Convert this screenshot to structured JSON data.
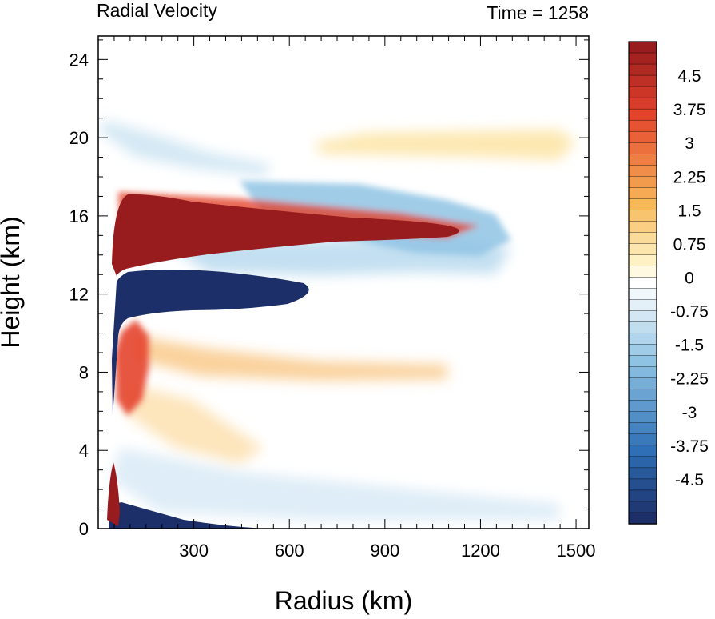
{
  "chart_data": {
    "type": "heatmap",
    "title": "Radial Velocity",
    "subtitle": "Time = 1258",
    "xlabel": "Radius (km)",
    "ylabel": "Height (km)",
    "xlim": [
      0,
      1540
    ],
    "ylim": [
      0,
      25.2
    ],
    "x_ticks": [
      300,
      600,
      900,
      1200,
      1500
    ],
    "y_ticks": [
      0,
      4,
      8,
      12,
      16,
      20,
      24
    ],
    "colorbar": {
      "min": -5.25,
      "max": 5.25,
      "step": 0.25,
      "tick_values": [
        4.5,
        3.75,
        3,
        2.25,
        1.5,
        0.75,
        0,
        -0.75,
        -1.5,
        -2.25,
        -3,
        -3.75,
        -4.5
      ],
      "tick_labels": [
        "4.5",
        "3.75",
        "3",
        "2.25",
        "1.5",
        "0.75",
        "0",
        "-0.75",
        "-1.5",
        "-2.25",
        "-3",
        "-3.75",
        "-4.5"
      ]
    },
    "colors": {
      "pos_strong": "#981b1e",
      "pos_mid": "#e4442c",
      "pos_weak": "#f7b858",
      "pos_faint": "#fef2c4",
      "neutral": "#ffffff",
      "neg_faint": "#e3f0f7",
      "neg_weak": "#8fc3e4",
      "neg_mid": "#2e6fb5",
      "neg_strong": "#1c2f68"
    },
    "features": [
      {
        "type": "outflow",
        "sign": "positive",
        "r_range": [
          40,
          1180
        ],
        "z_range": [
          13.5,
          17.2
        ],
        "peak": 5.5
      },
      {
        "type": "inflow",
        "sign": "negative",
        "r_range": [
          40,
          700
        ],
        "z_range": [
          11.0,
          13.6
        ],
        "peak": -5.5
      },
      {
        "type": "inflow",
        "sign": "negative",
        "r_range": [
          40,
          600
        ],
        "z_range": [
          0,
          1.3
        ],
        "peak": -5.5
      },
      {
        "type": "outflow",
        "sign": "positive",
        "r_range": [
          40,
          150
        ],
        "z_range": [
          6,
          9.6
        ],
        "peak": 3.5
      },
      {
        "type": "outflow",
        "sign": "positive",
        "r_range": [
          400,
          1500
        ],
        "z_range": [
          19.2,
          20.6
        ],
        "peak": 1.2
      },
      {
        "type": "inflow",
        "sign": "negative",
        "r_range": [
          60,
          1380
        ],
        "z_range": [
          13.0,
          15.0
        ],
        "peak": -2.5
      }
    ]
  }
}
